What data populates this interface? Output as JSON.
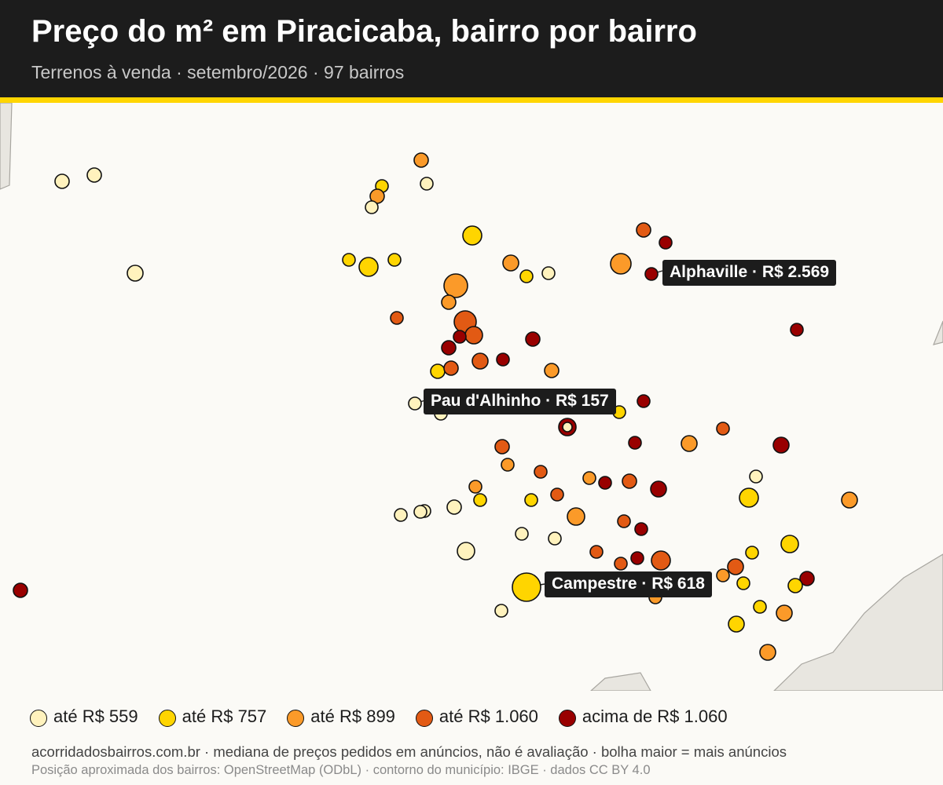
{
  "header": {
    "title": "Preço do m² em Piracicaba, bairro por bairro",
    "subtitle": "Terrenos à venda · setembro/2026 · 97 bairros"
  },
  "colors": {
    "header_bg": "#1c1c1c",
    "accent": "#ffd500",
    "background": "#fbfaf6",
    "land_outside": "#e8e6e0",
    "tiers": [
      "#fff2bd",
      "#ffd500",
      "#fb9a29",
      "#e25a14",
      "#990000"
    ]
  },
  "legend": [
    {
      "label": "até R$ 559",
      "tier": 0
    },
    {
      "label": "até R$ 757",
      "tier": 1
    },
    {
      "label": "até R$ 899",
      "tier": 2
    },
    {
      "label": "até R$ 1.060",
      "tier": 3
    },
    {
      "label": "acima de R$ 1.060",
      "tier": 4
    }
  ],
  "callouts": [
    {
      "label": "Alphaville · R$ 2.569"
    },
    {
      "label": "Pau d'Alhinho · R$ 157"
    },
    {
      "label": "Campestre · R$ 618"
    }
  ],
  "footer": {
    "note": "acorridadosbairros.com.br · mediana de preços pedidos em anúncios, não é avaliação · bolha maior = mais anúncios",
    "source": "Posição aproximada dos bairros: OpenStreetMap (ODbL) · contorno do município: IBGE · dados CC BY 4.0"
  }
}
